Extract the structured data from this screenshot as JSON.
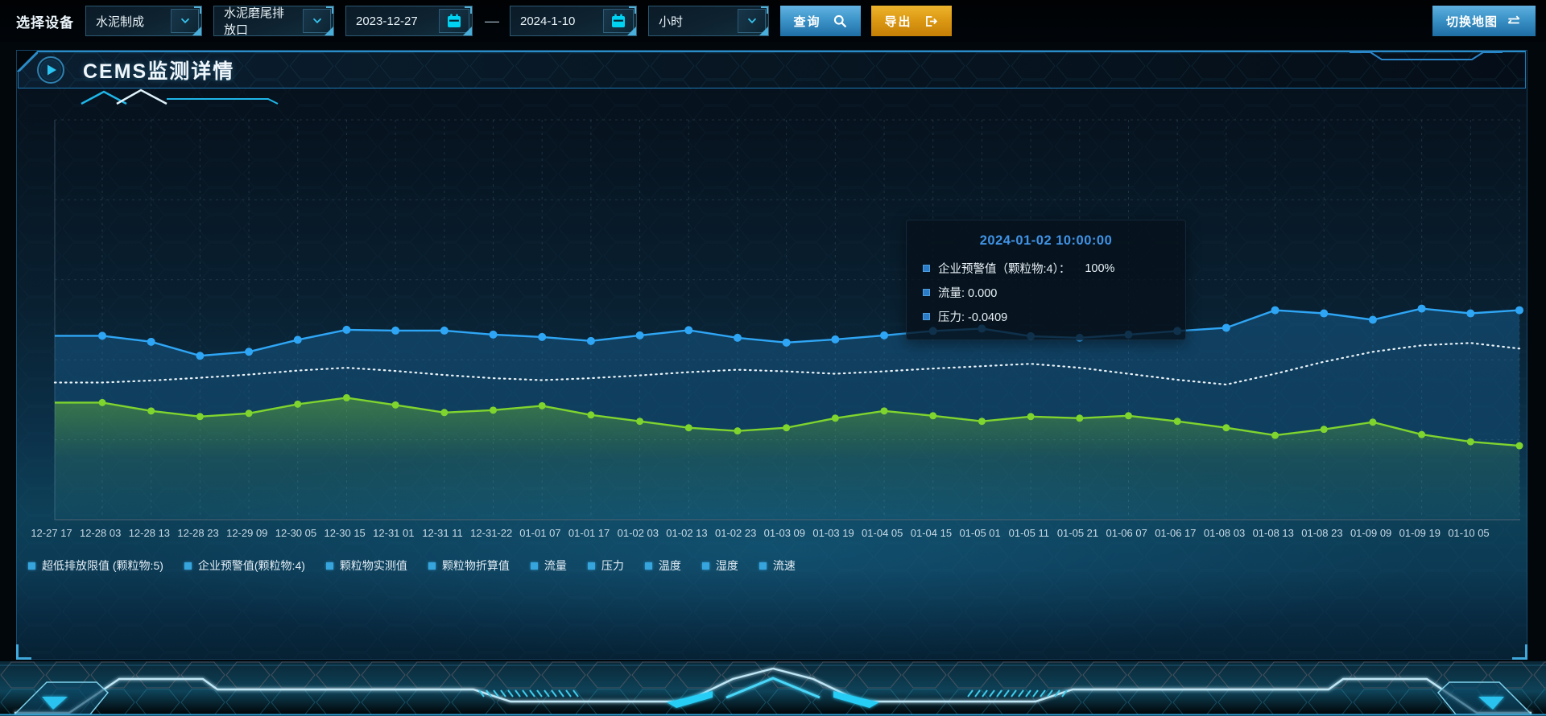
{
  "topbar": {
    "device_label": "选择设备",
    "device_select": {
      "value": "水泥制成"
    },
    "outlet_select": {
      "value": "水泥磨尾排放口"
    },
    "date_start": "2023-12-27",
    "date_range_separator": "—",
    "date_end": "2024-1-10",
    "interval_select": {
      "value": "小时"
    },
    "query_button": "查询",
    "export_button": "导出",
    "switch_map_button": "切换地图"
  },
  "panel": {
    "title": "CEMS监测详情"
  },
  "tooltip": {
    "timestamp": "2024-01-02 10:00:00",
    "items": [
      {
        "label": "企业预警值（颗粒物:4）：",
        "value": "100%"
      },
      {
        "label": "流量: 0.000",
        "value": ""
      },
      {
        "label": "压力: -0.0409",
        "value": ""
      }
    ]
  },
  "chart_data": {
    "type": "line",
    "title": "",
    "xlabel": "",
    "ylabel": "",
    "y_axis_labels_visible": false,
    "value_unit": "percent of plot height (no y-axis ticks shown)",
    "grid": "dashed",
    "legend_position": "bottom",
    "x_labels": [
      "12-27 17",
      "12-28 03",
      "12-28 13",
      "12-28 23",
      "12-29 09",
      "12-30 05",
      "12-30 15",
      "12-31 01",
      "12-31 11",
      "12-31-22",
      "01-01 07",
      "01-01 17",
      "01-02 03",
      "01-02 13",
      "01-02 23",
      "01-03 09",
      "01-03 19",
      "01-04 05",
      "01-04 15",
      "01-05 01",
      "01-05 11",
      "01-05 21",
      "01-06 07",
      "01-06 17",
      "01-08 03",
      "01-08 13",
      "01-08 23",
      "01-09 09",
      "01-09 19",
      "01-10 05"
    ],
    "legend_items": [
      "超低排放限值 (颗粒物:5)",
      "企业预警值(颗粒物:4)",
      "颗粒物实测值",
      "颗粒物折算值",
      "流量",
      "压力",
      "温度",
      "湿度",
      "流速"
    ],
    "series": [
      {
        "name": "企业预警值(颗粒物:4)",
        "color": "#2fa6f5",
        "style": "solid",
        "markers": true,
        "area": true,
        "values": [
          46,
          44.5,
          41,
          42,
          45,
          47.5,
          47.3,
          47.3,
          46.3,
          45.7,
          44.7,
          46.1,
          47.4,
          45.5,
          44.3,
          45.1,
          46.1,
          47.2,
          47.8,
          45.9,
          45.5,
          46.3,
          47.2,
          48,
          52.4,
          51.6,
          50,
          52.8,
          51.6,
          52.4
        ]
      },
      {
        "name": "流量",
        "color": "#7fd42e",
        "style": "solid",
        "markers": true,
        "area": true,
        "values": [
          29.3,
          27.2,
          25.8,
          26.6,
          28.9,
          30.5,
          28.7,
          26.8,
          27.4,
          28.5,
          26.2,
          24.6,
          23,
          22.2,
          23,
          25.4,
          27.2,
          26,
          24.6,
          25.8,
          25.4,
          26,
          24.6,
          23,
          21.1,
          22.6,
          24.4,
          21.3,
          19.5,
          18.5
        ]
      },
      {
        "name": "压力",
        "color": "#e9f3f8",
        "style": "dotted",
        "markers": false,
        "area": false,
        "values": [
          34.3,
          34.8,
          35.5,
          36.3,
          37.3,
          38,
          37.2,
          36.2,
          35.4,
          34.9,
          35.4,
          36.1,
          36.9,
          37.5,
          37.1,
          36.5,
          37.1,
          37.8,
          38.4,
          39,
          38,
          36.5,
          35,
          33.8,
          36.5,
          39.5,
          42,
          43.6,
          44.2,
          42.8
        ]
      }
    ]
  },
  "colors": {
    "accent_cyan": "#29c5f0",
    "query_button": "#2e86c4",
    "export_button": "#dd9a14",
    "tooltip_title": "#4093e6",
    "series_blue": "#2fa6f5",
    "series_green": "#7fd42e",
    "series_white": "#e9f3f8",
    "legend_marker": "#36a5de"
  }
}
